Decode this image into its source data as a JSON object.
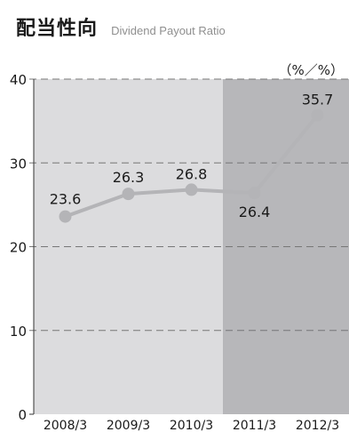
{
  "title_jp": "配当性向",
  "title_en": "Dividend Payout Ratio",
  "unit": "（%／%）",
  "colors": {
    "bg_light": "#dcdcde",
    "bg_dark": "#b7b7ba",
    "line": "#b4b4b7",
    "marker": "#b4b4b7",
    "grid": "#777777",
    "text": "#1a1a1a"
  },
  "chart_data": {
    "type": "line",
    "title": "配当性向",
    "subtitle": "Dividend Payout Ratio",
    "categories": [
      "2008/3",
      "2009/3",
      "2010/3",
      "2011/3",
      "2012/3"
    ],
    "series": [
      {
        "values": [
          23.6,
          26.3,
          26.8,
          26.4,
          35.7
        ]
      }
    ],
    "data_labels": [
      "23.6",
      "26.3",
      "26.8",
      "26.4",
      "35.7"
    ],
    "ylim": [
      0,
      40
    ],
    "yticks": [
      "0",
      "10",
      "20",
      "30",
      "40"
    ],
    "grid": "dashed horizontal",
    "shaded_from_category": "2011/3"
  }
}
